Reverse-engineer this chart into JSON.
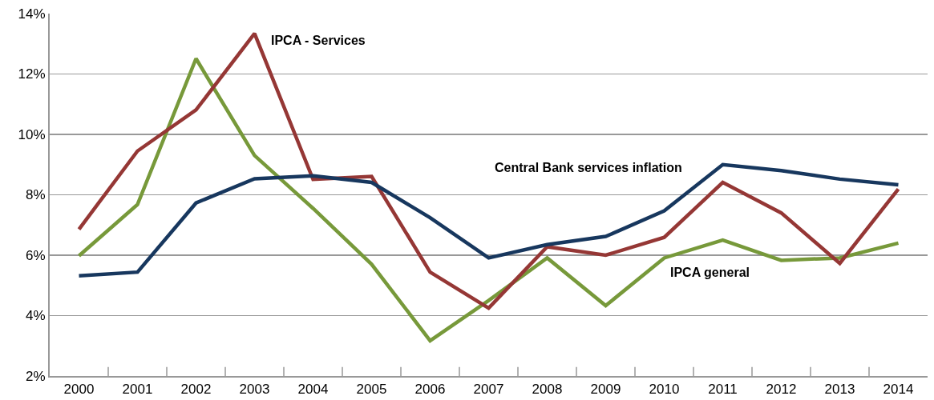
{
  "chart_data": {
    "type": "line",
    "categories": [
      "2000",
      "2001",
      "2002",
      "2003",
      "2004",
      "2005",
      "2006",
      "2007",
      "2008",
      "2009",
      "2010",
      "2011",
      "2012",
      "2013",
      "2014"
    ],
    "series": [
      {
        "name": "IPCA general",
        "color": "#77993a",
        "values": [
          5.98,
          7.68,
          12.51,
          9.3,
          7.55,
          5.7,
          3.17,
          4.5,
          5.91,
          4.33,
          5.91,
          6.5,
          5.83,
          5.91,
          6.4
        ]
      },
      {
        "name": "IPCA - Services",
        "color": "#953735",
        "values": [
          6.86,
          9.45,
          10.81,
          13.34,
          8.51,
          8.61,
          5.44,
          4.25,
          6.28,
          6.0,
          6.59,
          8.41,
          7.4,
          5.73,
          8.19
        ]
      },
      {
        "name": "Central Bank services inflation",
        "color": "#17375e",
        "values": [
          5.32,
          5.44,
          7.73,
          8.53,
          8.63,
          8.41,
          7.24,
          5.91,
          6.35,
          6.62,
          7.47,
          9.0,
          8.8,
          8.52,
          8.33
        ]
      }
    ],
    "ylim": [
      2,
      14
    ],
    "yticks": [
      {
        "value": 2,
        "label": "2%"
      },
      {
        "value": 4,
        "label": "4%"
      },
      {
        "value": 6,
        "label": "6%"
      },
      {
        "value": 8,
        "label": "8%"
      },
      {
        "value": 10,
        "label": "10%"
      },
      {
        "value": 12,
        "label": "12%"
      },
      {
        "value": 14,
        "label": "14%"
      }
    ],
    "grid": "y",
    "legend": false,
    "marker": "none",
    "line_style": "solid"
  }
}
